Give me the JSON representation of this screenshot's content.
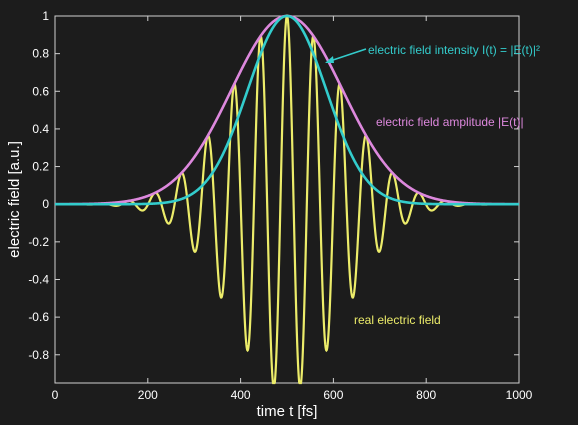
{
  "chart_data": {
    "type": "line",
    "title": "",
    "xlabel": "time t [fs]",
    "ylabel": "electric field [a.u.]",
    "xlim": [
      0,
      1000
    ],
    "ylim": [
      -0.95,
      1.0
    ],
    "x_ticks": [
      0,
      200,
      400,
      600,
      800,
      1000
    ],
    "y_ticks": [
      1,
      0.8,
      0.6,
      0.4,
      0.2,
      0,
      -0.2,
      -0.4,
      -0.6,
      -0.8
    ],
    "x_tick_labels": [
      "0",
      "200",
      "400",
      "600",
      "800",
      "1000"
    ],
    "y_tick_labels": [
      "1",
      "0.8",
      "0.6",
      "0.4",
      "0.2",
      "0",
      "-0.2",
      "-0.4",
      "-0.6",
      "-0.8"
    ],
    "grid": false,
    "pulse_center_fs": 500,
    "amplitude_sigma_fs": 120,
    "carrier_period_fs": 57,
    "series": [
      {
        "key": "real",
        "label": "real electric field",
        "color": "#ecec6a",
        "x": [
          0,
          100,
          200,
          260,
          300,
          350,
          400,
          450,
          500,
          550,
          600,
          650,
          700,
          750,
          800,
          850,
          900,
          1000
        ],
        "y": [
          0,
          -0.01,
          -0.1,
          0.22,
          -0.4,
          0.6,
          -0.78,
          0.9,
          1.0,
          0.92,
          0.72,
          0.52,
          0.34,
          0.22,
          0.13,
          0.07,
          0.03,
          0
        ]
      },
      {
        "key": "intensity",
        "label": "electric field intensity I(t) = |E(t)|²",
        "color": "#33cccc",
        "x": [
          0,
          200,
          300,
          400,
          450,
          500,
          550,
          600,
          700,
          800,
          1000
        ],
        "y": [
          0,
          0.04,
          0.25,
          0.71,
          0.92,
          1.0,
          0.92,
          0.71,
          0.25,
          0.04,
          0
        ]
      },
      {
        "key": "amplitude",
        "label": "electric field amplitude |E(t)|",
        "color": "#dd88dd",
        "x": [
          0,
          200,
          300,
          400,
          450,
          500,
          550,
          600,
          700,
          800,
          1000
        ],
        "y": [
          0.0,
          0.21,
          0.5,
          0.84,
          0.96,
          1.0,
          0.96,
          0.84,
          0.5,
          0.21,
          0.0
        ]
      }
    ],
    "annotations": {
      "intensity": "electric field intensity I(t) = |E(t)|²",
      "amplitude": "electric field amplitude |E(t)|",
      "real": "real electric field"
    }
  }
}
